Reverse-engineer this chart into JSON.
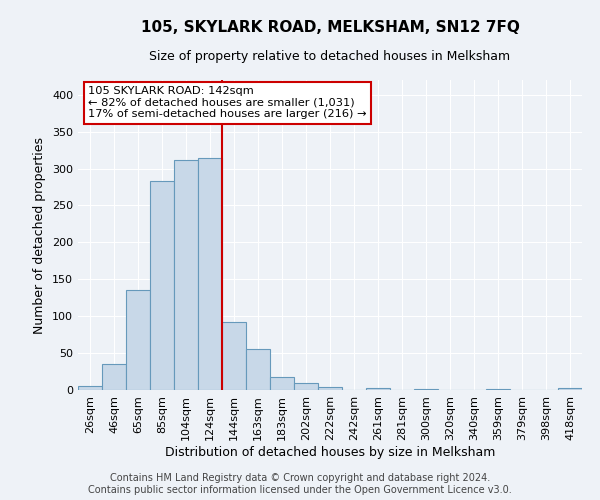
{
  "title": "105, SKYLARK ROAD, MELKSHAM, SN12 7FQ",
  "subtitle": "Size of property relative to detached houses in Melksham",
  "xlabel": "Distribution of detached houses by size in Melksham",
  "ylabel": "Number of detached properties",
  "bin_labels": [
    "26sqm",
    "46sqm",
    "65sqm",
    "85sqm",
    "104sqm",
    "124sqm",
    "144sqm",
    "163sqm",
    "183sqm",
    "202sqm",
    "222sqm",
    "242sqm",
    "261sqm",
    "281sqm",
    "300sqm",
    "320sqm",
    "340sqm",
    "359sqm",
    "379sqm",
    "398sqm",
    "418sqm"
  ],
  "bar_values": [
    6,
    35,
    135,
    283,
    311,
    315,
    92,
    56,
    18,
    10,
    4,
    0,
    3,
    0,
    2,
    0,
    0,
    2,
    0,
    0,
    3
  ],
  "bar_color": "#c8d8e8",
  "bar_edge_color": "#6699bb",
  "vline_color": "#cc0000",
  "ylim": [
    0,
    420
  ],
  "yticks": [
    0,
    50,
    100,
    150,
    200,
    250,
    300,
    350,
    400
  ],
  "annotation_title": "105 SKYLARK ROAD: 142sqm",
  "annotation_line1": "← 82% of detached houses are smaller (1,031)",
  "annotation_line2": "17% of semi-detached houses are larger (216) →",
  "annotation_box_facecolor": "#ffffff",
  "annotation_box_edgecolor": "#cc0000",
  "footer_line1": "Contains HM Land Registry data © Crown copyright and database right 2024.",
  "footer_line2": "Contains public sector information licensed under the Open Government Licence v3.0.",
  "background_color": "#eef2f7",
  "plot_bg_color": "#eef2f7",
  "grid_color": "#ffffff",
  "title_fontsize": 11,
  "subtitle_fontsize": 9,
  "axis_label_fontsize": 9,
  "tick_fontsize": 8,
  "footer_fontsize": 7
}
